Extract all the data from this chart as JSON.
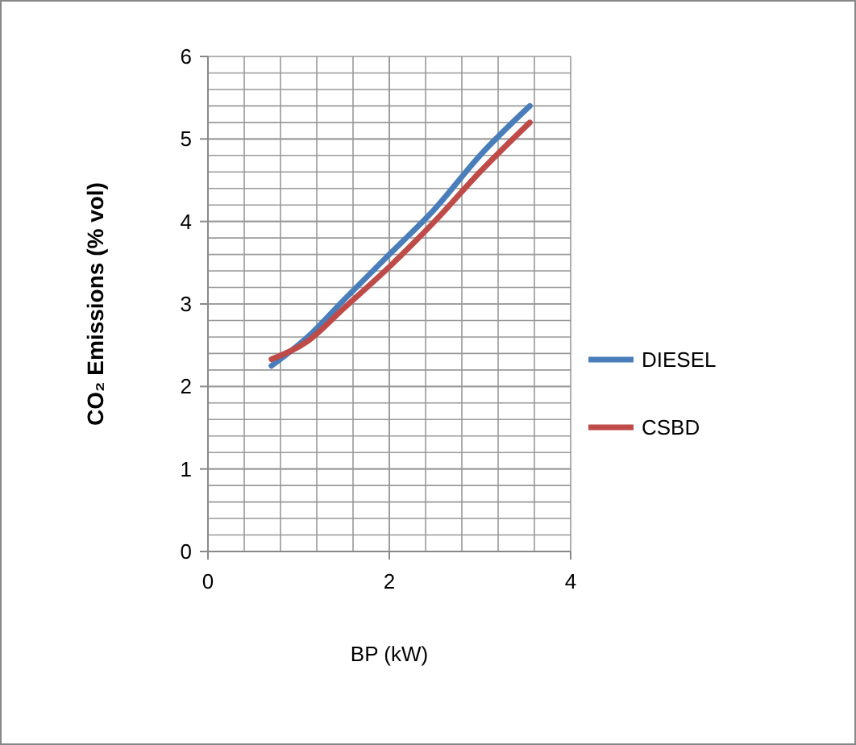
{
  "chart_data": {
    "type": "line",
    "xlabel": "BP (kW)",
    "ylabel": "CO₂ Emissions (% vol)",
    "xlim": [
      0,
      4
    ],
    "xticks": [
      0,
      2,
      4
    ],
    "ylim": [
      0,
      6
    ],
    "yticks": [
      0,
      1,
      2,
      3,
      4,
      5,
      6
    ],
    "grid": true,
    "legend": "right",
    "marker": "none",
    "line_style": "solid",
    "series": [
      {
        "name": "DIESEL",
        "color": "#4a7ebb",
        "x": [
          0.7,
          1.1,
          1.5,
          2,
          2.5,
          3,
          3.55
        ],
        "values": [
          2.25,
          2.6,
          3.05,
          3.6,
          4.15,
          4.8,
          5.4
        ]
      },
      {
        "name": "CSBD",
        "color": "#be4b48",
        "x": [
          0.7,
          1.1,
          1.5,
          2,
          2.5,
          3,
          3.55
        ],
        "values": [
          2.33,
          2.55,
          2.95,
          3.45,
          4.0,
          4.6,
          5.2
        ]
      }
    ]
  }
}
